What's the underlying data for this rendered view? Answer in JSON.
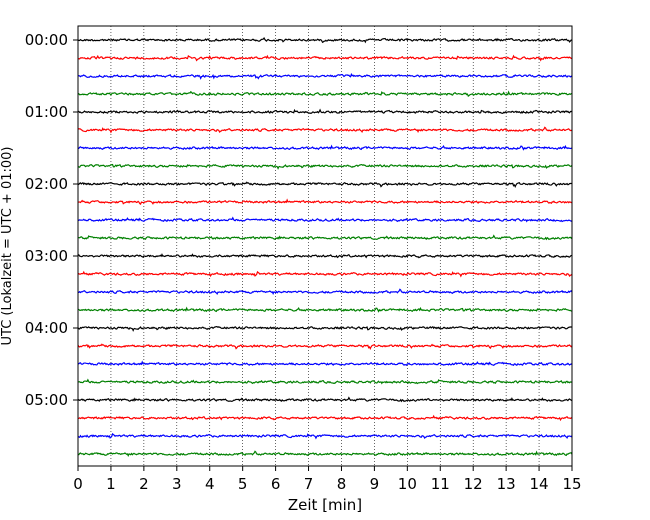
{
  "chart_data": {
    "type": "line",
    "title": "",
    "xlabel": "Zeit  [min]",
    "ylabel": "UTC (Lokalzeit = UTC + 01:00)",
    "xlim": [
      0,
      15
    ],
    "ylim": [
      0,
      6
    ],
    "x_ticks": [
      "0",
      "1",
      "2",
      "3",
      "4",
      "5",
      "6",
      "7",
      "8",
      "9",
      "10",
      "11",
      "12",
      "13",
      "14",
      "15"
    ],
    "y_ticks": [
      {
        "label": "00:00",
        "hour": 0
      },
      {
        "label": "01:00",
        "hour": 1
      },
      {
        "label": "02:00",
        "hour": 2
      },
      {
        "label": "03:00",
        "hour": 3
      },
      {
        "label": "04:00",
        "hour": 4
      },
      {
        "label": "05:00",
        "hour": 5
      }
    ],
    "y_inverted": true,
    "grid": "vertical dotted at each minute",
    "trace_interval_minutes": 15,
    "trace_count": 24,
    "trace_colors": [
      "#000000",
      "#ff0000",
      "#0000ff",
      "#008000"
    ],
    "series": [
      {
        "start": "00:00"
      },
      {
        "start": "00:15"
      },
      {
        "start": "00:30"
      },
      {
        "start": "00:45"
      },
      {
        "start": "01:00"
      },
      {
        "start": "01:15"
      },
      {
        "start": "01:30"
      },
      {
        "start": "01:45"
      },
      {
        "start": "02:00"
      },
      {
        "start": "02:15"
      },
      {
        "start": "02:30"
      },
      {
        "start": "02:45"
      },
      {
        "start": "03:00"
      },
      {
        "start": "03:15"
      },
      {
        "start": "03:30"
      },
      {
        "start": "03:45"
      },
      {
        "start": "04:00"
      },
      {
        "start": "04:15"
      },
      {
        "start": "04:30"
      },
      {
        "start": "04:45"
      },
      {
        "start": "05:00"
      },
      {
        "start": "05:15"
      },
      {
        "start": "05:30"
      },
      {
        "start": "05:45"
      }
    ]
  }
}
